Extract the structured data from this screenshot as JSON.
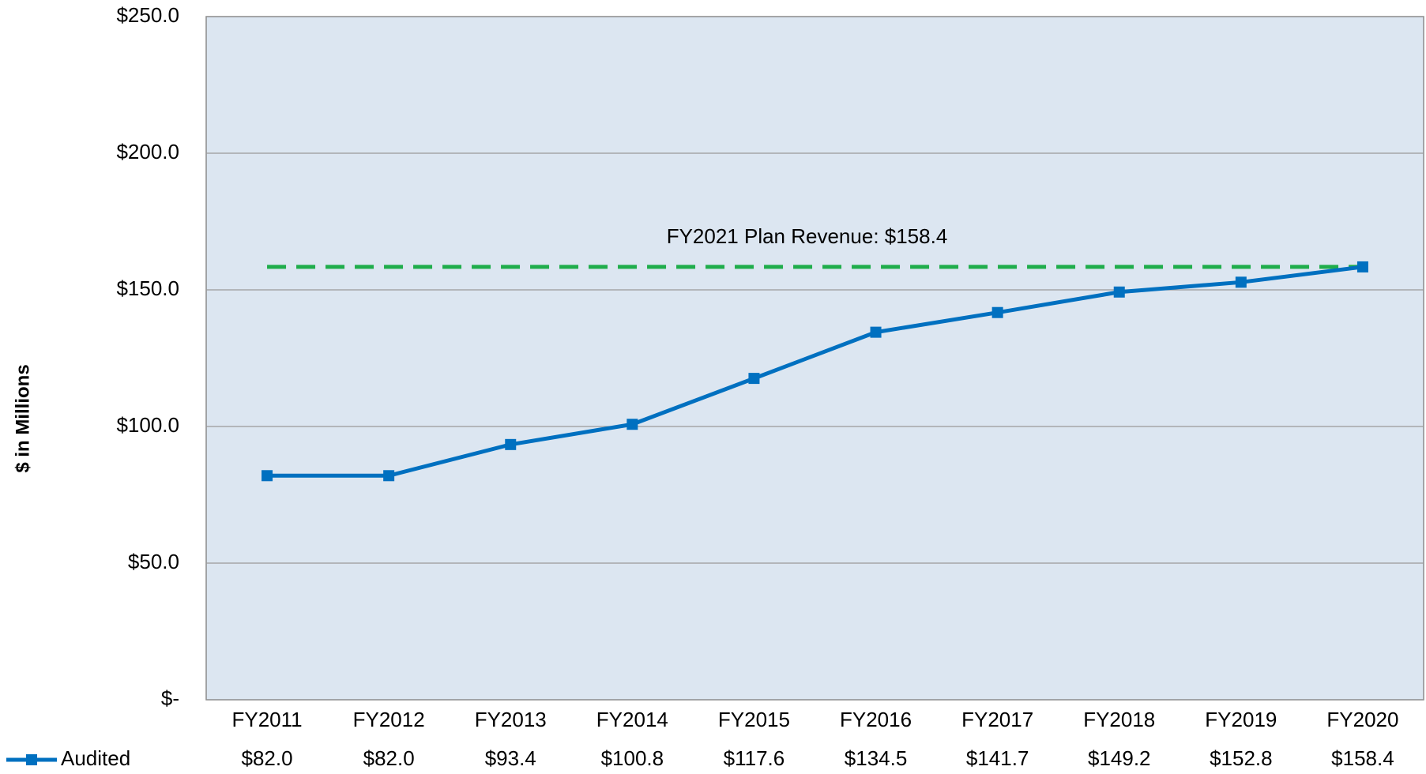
{
  "chart_data": {
    "type": "line",
    "y_axis_label": "$ in Millions",
    "categories": [
      "FY2011",
      "FY2012",
      "FY2013",
      "FY2014",
      "FY2015",
      "FY2016",
      "FY2017",
      "FY2018",
      "FY2019",
      "FY2020"
    ],
    "series": [
      {
        "name": "Audited",
        "color": "#0070c0",
        "values": [
          82.0,
          82.0,
          93.4,
          100.8,
          117.6,
          134.5,
          141.7,
          149.2,
          152.8,
          158.4
        ],
        "value_labels": [
          "$82.0",
          "$82.0",
          "$93.4",
          "$100.8",
          "$117.6",
          "$134.5",
          "$141.7",
          "$149.2",
          "$152.8",
          "$158.4"
        ]
      }
    ],
    "annotations": [
      {
        "text": "FY2021 Plan Revenue: $158.4",
        "y": 158.4,
        "color": "#1fad4b"
      }
    ],
    "ylim": [
      0,
      250
    ],
    "yticks": [
      {
        "value": 0,
        "label": "$-"
      },
      {
        "value": 50,
        "label": "$50.0"
      },
      {
        "value": 100,
        "label": "$100.0"
      },
      {
        "value": 150,
        "label": "$150.0"
      },
      {
        "value": 200,
        "label": "$200.0"
      },
      {
        "value": 250,
        "label": "$250.0"
      }
    ],
    "grid": true
  }
}
